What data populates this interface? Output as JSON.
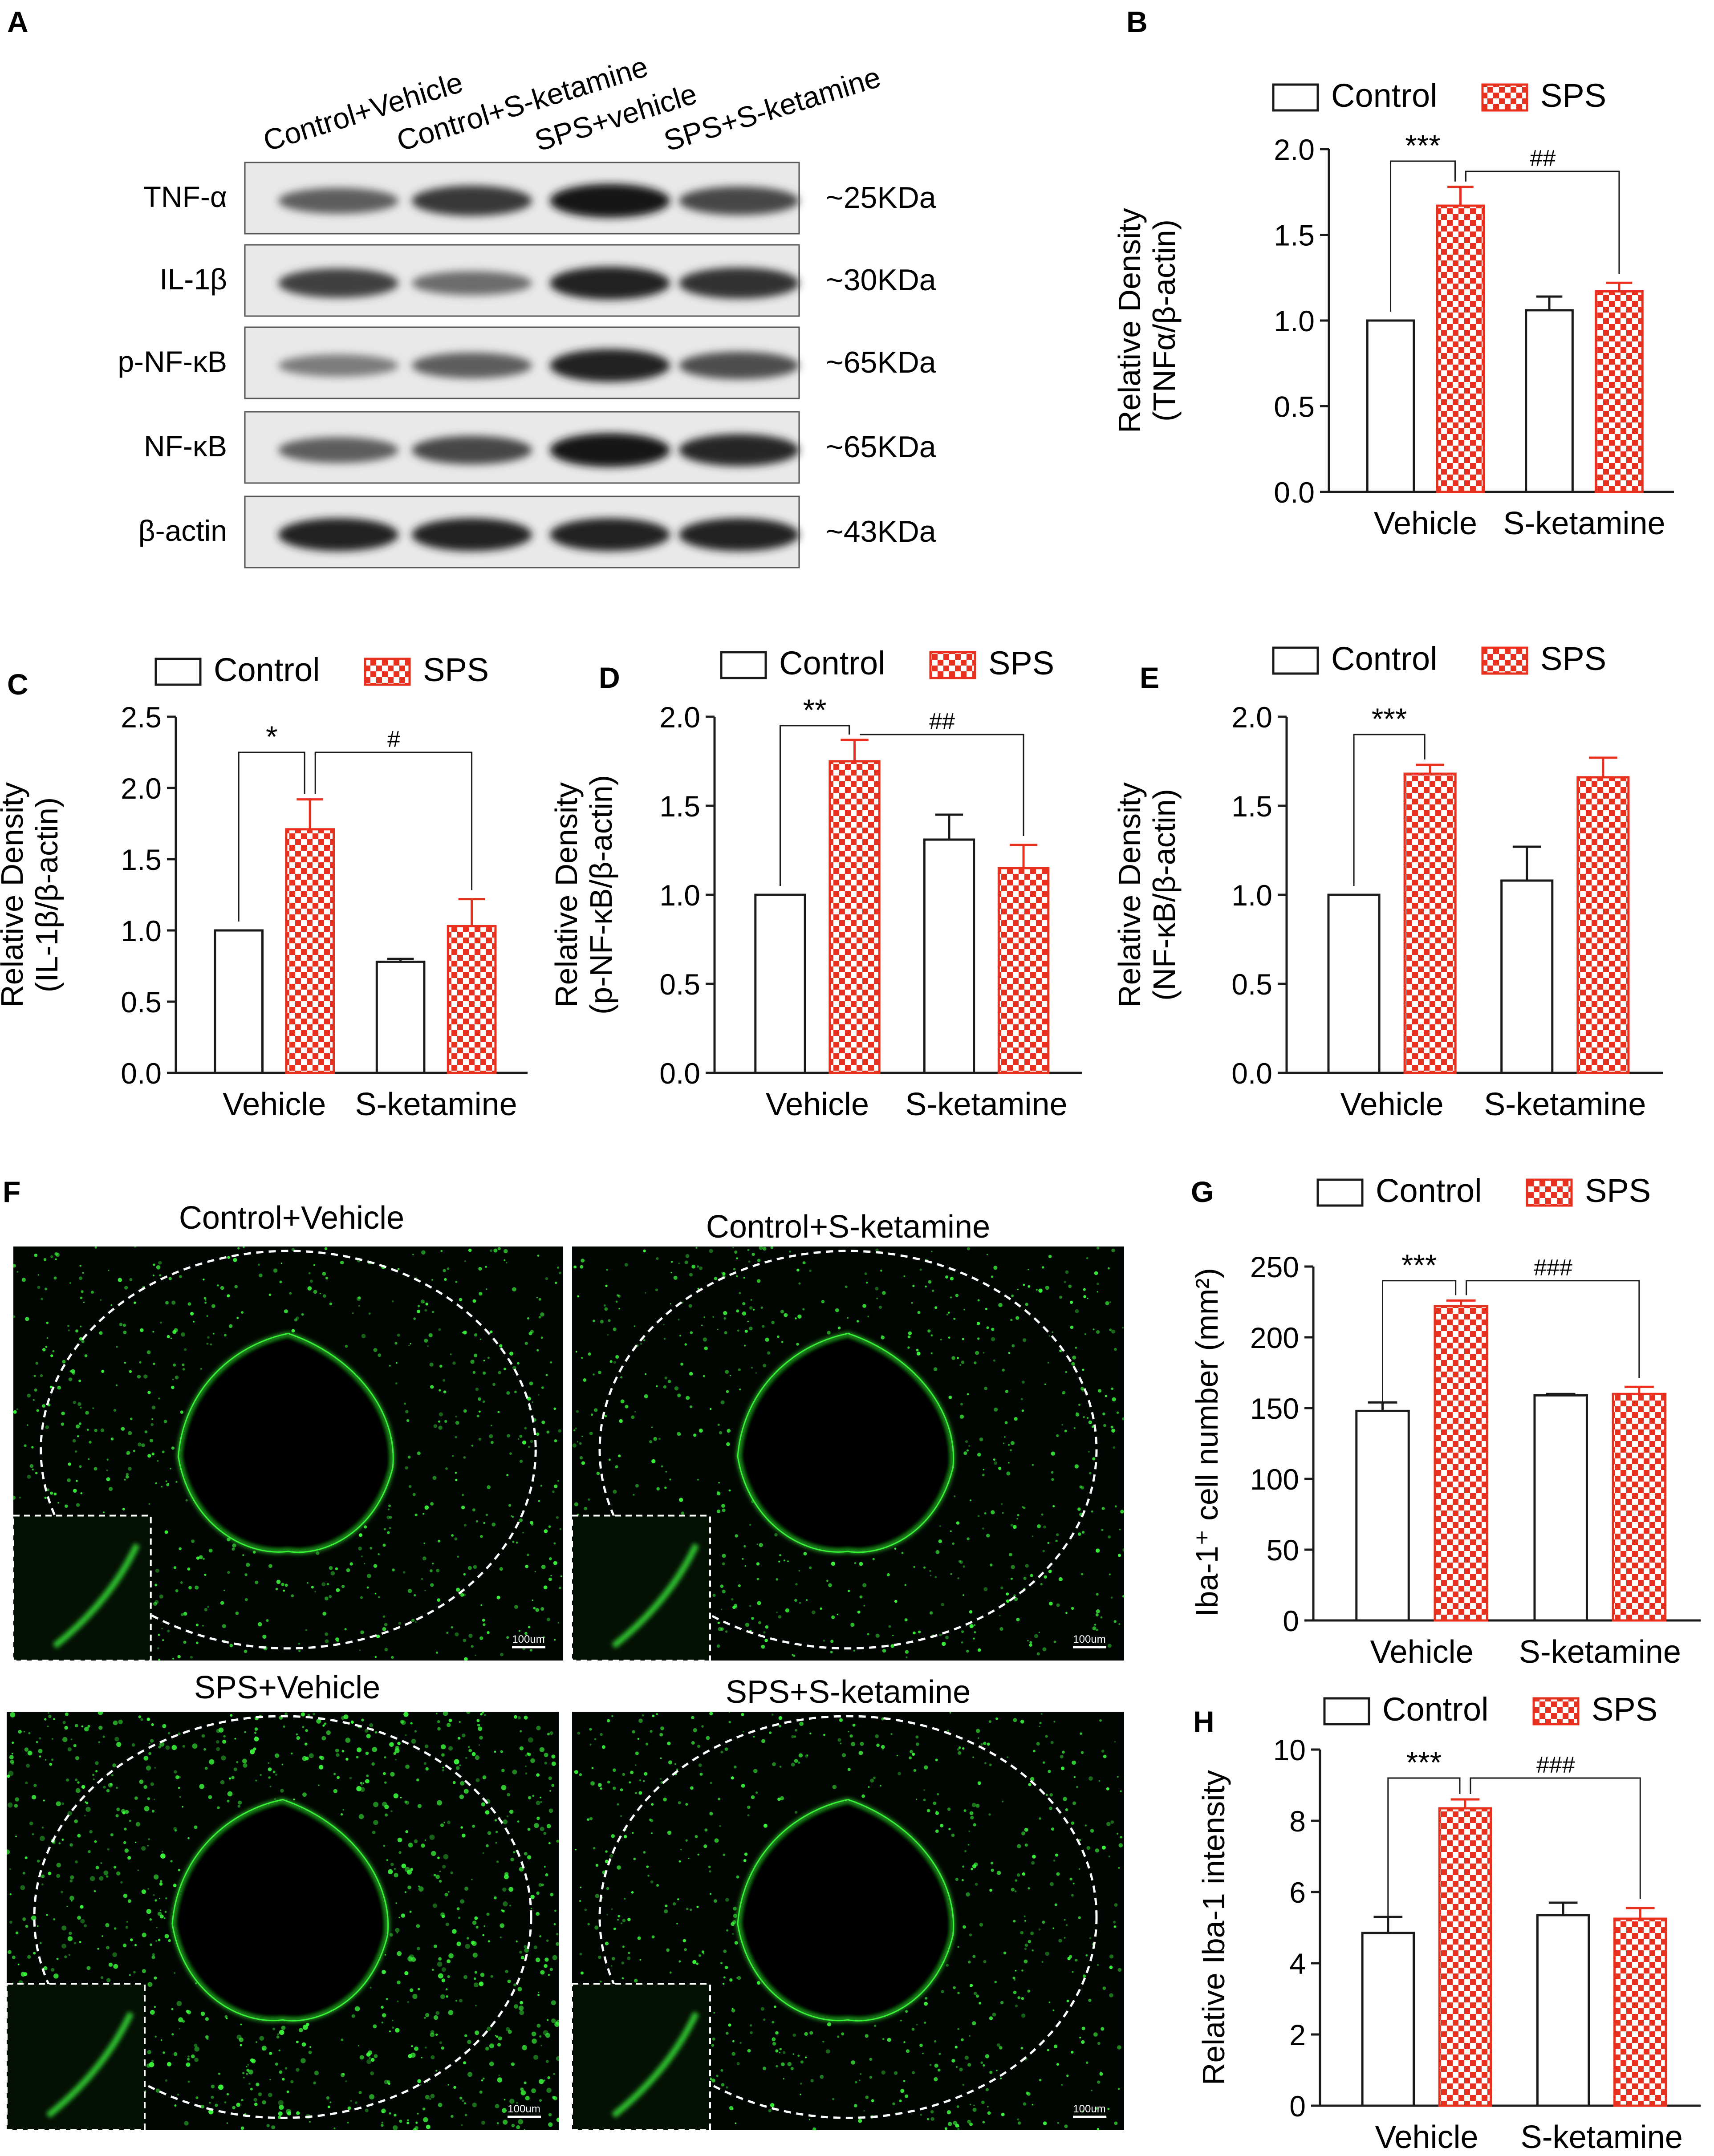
{
  "panel_letters": [
    "A",
    "B",
    "C",
    "D",
    "E",
    "F",
    "G",
    "H"
  ],
  "western_blot": {
    "lanes": [
      "Control+Vehicle",
      "Control+S-ketamine",
      "SPS+vehicle",
      "SPS+S-ketamine"
    ],
    "rows": [
      {
        "protein": "TNF-α",
        "size": "~25KDa",
        "intensity": [
          0.55,
          0.8,
          1.0,
          0.7
        ]
      },
      {
        "protein": "IL-1β",
        "size": "~30KDa",
        "intensity": [
          0.75,
          0.45,
          0.95,
          0.85
        ]
      },
      {
        "protein": "p-NF-κB",
        "size": "~65KDa",
        "intensity": [
          0.35,
          0.55,
          0.95,
          0.65
        ]
      },
      {
        "protein": "NF-κB",
        "size": "~65KDa",
        "intensity": [
          0.55,
          0.7,
          1.0,
          0.9
        ]
      },
      {
        "protein": "β-actin",
        "size": "~43KDa",
        "intensity": [
          0.95,
          0.95,
          0.95,
          0.95
        ]
      }
    ]
  },
  "legend": {
    "control": "Control",
    "sps": "SPS"
  },
  "colors": {
    "sps": "#e8301e",
    "control": "#ffffff",
    "axis": "#1a1a1a",
    "fluorescence": "#3cff3c"
  },
  "chart_data": [
    {
      "panel": "B",
      "type": "bar",
      "categories": [
        "Vehicle",
        "S-ketamine"
      ],
      "ylabel": [
        "Relative Density",
        "(TNFα/β-actin)"
      ],
      "ylim": [
        0,
        2.0
      ],
      "yticks": [
        "0.0",
        "0.5",
        "1.0",
        "1.5",
        "2.0"
      ],
      "series": [
        {
          "name": "Control",
          "values": [
            1.0,
            1.06
          ],
          "errors": [
            0,
            0.08
          ]
        },
        {
          "name": "SPS",
          "values": [
            1.67,
            1.17
          ],
          "errors": [
            0.11,
            0.05
          ]
        }
      ],
      "significance": [
        {
          "label": "***"
        },
        {
          "label": "##"
        }
      ]
    },
    {
      "panel": "C",
      "type": "bar",
      "categories": [
        "Vehicle",
        "S-ketamine"
      ],
      "ylabel": [
        "Relative Density",
        "(IL-1β/β-actin)"
      ],
      "ylim": [
        0,
        2.5
      ],
      "yticks": [
        "0.0",
        "0.5",
        "1.0",
        "1.5",
        "2.0",
        "2.5"
      ],
      "series": [
        {
          "name": "Control",
          "values": [
            1.0,
            0.78
          ],
          "errors": [
            0,
            0.02
          ]
        },
        {
          "name": "SPS",
          "values": [
            1.71,
            1.03
          ],
          "errors": [
            0.21,
            0.19
          ]
        }
      ],
      "significance": [
        {
          "label": "*"
        },
        {
          "label": "#"
        }
      ]
    },
    {
      "panel": "D",
      "type": "bar",
      "categories": [
        "Vehicle",
        "S-ketamine"
      ],
      "ylabel": [
        "Relative Density",
        "(p-NF-κB/β-actin)"
      ],
      "ylim": [
        0,
        2.0
      ],
      "yticks": [
        "0.0",
        "0.5",
        "1.0",
        "1.5",
        "2.0"
      ],
      "series": [
        {
          "name": "Control",
          "values": [
            1.0,
            1.31
          ],
          "errors": [
            0,
            0.14
          ]
        },
        {
          "name": "SPS",
          "values": [
            1.75,
            1.15
          ],
          "errors": [
            0.12,
            0.13
          ]
        }
      ],
      "significance": [
        {
          "label": "**"
        },
        {
          "label": "##"
        }
      ]
    },
    {
      "panel": "E",
      "type": "bar",
      "categories": [
        "Vehicle",
        "S-ketamine"
      ],
      "ylabel": [
        "Relative Density",
        "(NF-κB/β-actin)"
      ],
      "ylim": [
        0,
        2.0
      ],
      "yticks": [
        "0.0",
        "0.5",
        "1.0",
        "1.5",
        "2.0"
      ],
      "series": [
        {
          "name": "Control",
          "values": [
            1.0,
            1.08
          ],
          "errors": [
            0,
            0.19
          ]
        },
        {
          "name": "SPS",
          "values": [
            1.68,
            1.66
          ],
          "errors": [
            0.05,
            0.11
          ]
        }
      ],
      "significance": [
        {
          "label": "***"
        }
      ]
    },
    {
      "panel": "G",
      "type": "bar",
      "categories": [
        "Vehicle",
        "S-ketamine"
      ],
      "ylabel": [
        "Iba-1⁺ cell number (mm²)"
      ],
      "ylim": [
        0,
        250
      ],
      "yticks": [
        "0",
        "50",
        "100",
        "150",
        "200",
        "250"
      ],
      "series": [
        {
          "name": "Control",
          "values": [
            148,
            159
          ],
          "errors": [
            6,
            1
          ]
        },
        {
          "name": "SPS",
          "values": [
            222,
            160
          ],
          "errors": [
            4,
            5
          ]
        }
      ],
      "significance": [
        {
          "label": "***"
        },
        {
          "label": "###"
        }
      ]
    },
    {
      "panel": "H",
      "type": "bar",
      "categories": [
        "Vehicle",
        "S-ketamine"
      ],
      "ylabel": [
        "Relative Iba-1 intensity"
      ],
      "ylim": [
        0,
        10
      ],
      "yticks": [
        "0",
        "2",
        "4",
        "6",
        "8",
        "10"
      ],
      "series": [
        {
          "name": "Control",
          "values": [
            4.85,
            5.35
          ],
          "errors": [
            0.45,
            0.35
          ]
        },
        {
          "name": "SPS",
          "values": [
            8.35,
            5.25
          ],
          "errors": [
            0.25,
            0.3
          ]
        }
      ],
      "significance": [
        {
          "label": "***"
        },
        {
          "label": "###"
        }
      ]
    }
  ],
  "micrographs": [
    {
      "title": "Control+Vehicle",
      "scale_bar": "100um",
      "microglia_density": 0.55
    },
    {
      "title": "Control+S-ketamine",
      "scale_bar": "100um",
      "microglia_density": 0.5
    },
    {
      "title": "SPS+Vehicle",
      "scale_bar": "100um",
      "microglia_density": 1.0
    },
    {
      "title": "SPS+S-ketamine",
      "scale_bar": "100um",
      "microglia_density": 0.55
    }
  ]
}
